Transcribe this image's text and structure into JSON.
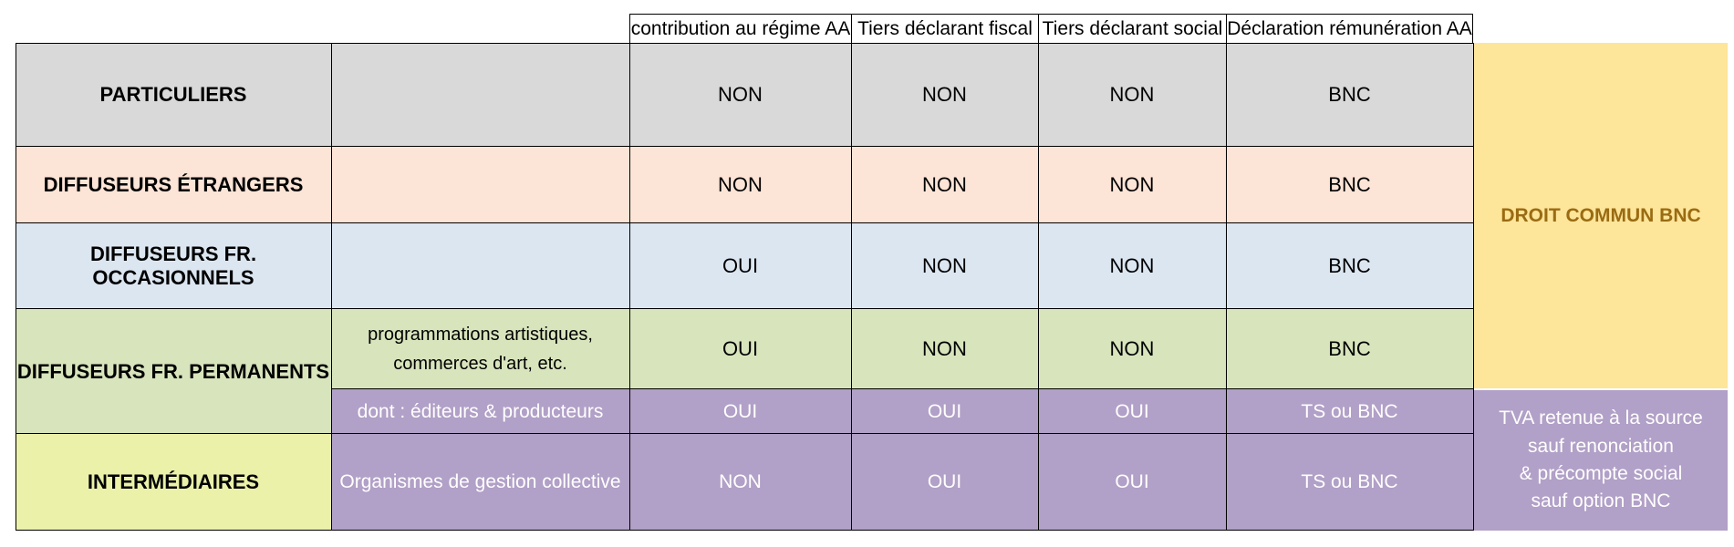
{
  "columns": {
    "c1": "contribution au régime AA",
    "c2": "Tiers déclarant fiscal",
    "c3": "Tiers déclarant social",
    "c4": "Déclaration rémunération AA"
  },
  "rows": {
    "particuliers": {
      "label": "PARTICULIERS",
      "sub": "",
      "values": [
        "NON",
        "NON",
        "NON",
        "BNC"
      ]
    },
    "etrangers": {
      "label": "DIFFUSEURS ÉTRANGERS",
      "sub": "",
      "values": [
        "NON",
        "NON",
        "NON",
        "BNC"
      ]
    },
    "occasionnels": {
      "label": "DIFFUSEURS FR. OCCASIONNELS",
      "sub": "",
      "values": [
        "OUI",
        "NON",
        "NON",
        "BNC"
      ]
    },
    "permanents": {
      "label": "DIFFUSEURS FR. PERMANENTS",
      "sub_line1": "programmations artistiques,",
      "sub_line2": "commerces d'art, etc.",
      "values": [
        "OUI",
        "NON",
        "NON",
        "BNC"
      ]
    },
    "editeurs": {
      "sub": "dont : éditeurs & producteurs",
      "values": [
        "OUI",
        "OUI",
        "OUI",
        "TS ou BNC"
      ]
    },
    "intermediaires": {
      "label": "INTERMÉDIAIRES",
      "sub": "Organismes de gestion collective",
      "values": [
        "NON",
        "OUI",
        "OUI",
        "TS ou BNC"
      ]
    }
  },
  "side": {
    "droit_commun": "DROIT COMMUN BNC",
    "tva_line1": "TVA retenue à la source",
    "tva_line2": "sauf renonciation",
    "tva_line3": "& précompte social",
    "tva_line4": "sauf option BNC"
  },
  "colors": {
    "particuliers": "#d9d9d9",
    "etrangers": "#fce4d6",
    "occasionnels": "#dce6f1",
    "permanents": "#d8e4bc",
    "intermediaires": "#ebf1a9",
    "purple": "#b1a0c7",
    "droit_commun": "#fde59a",
    "droit_commun_text": "#9a6b12"
  }
}
